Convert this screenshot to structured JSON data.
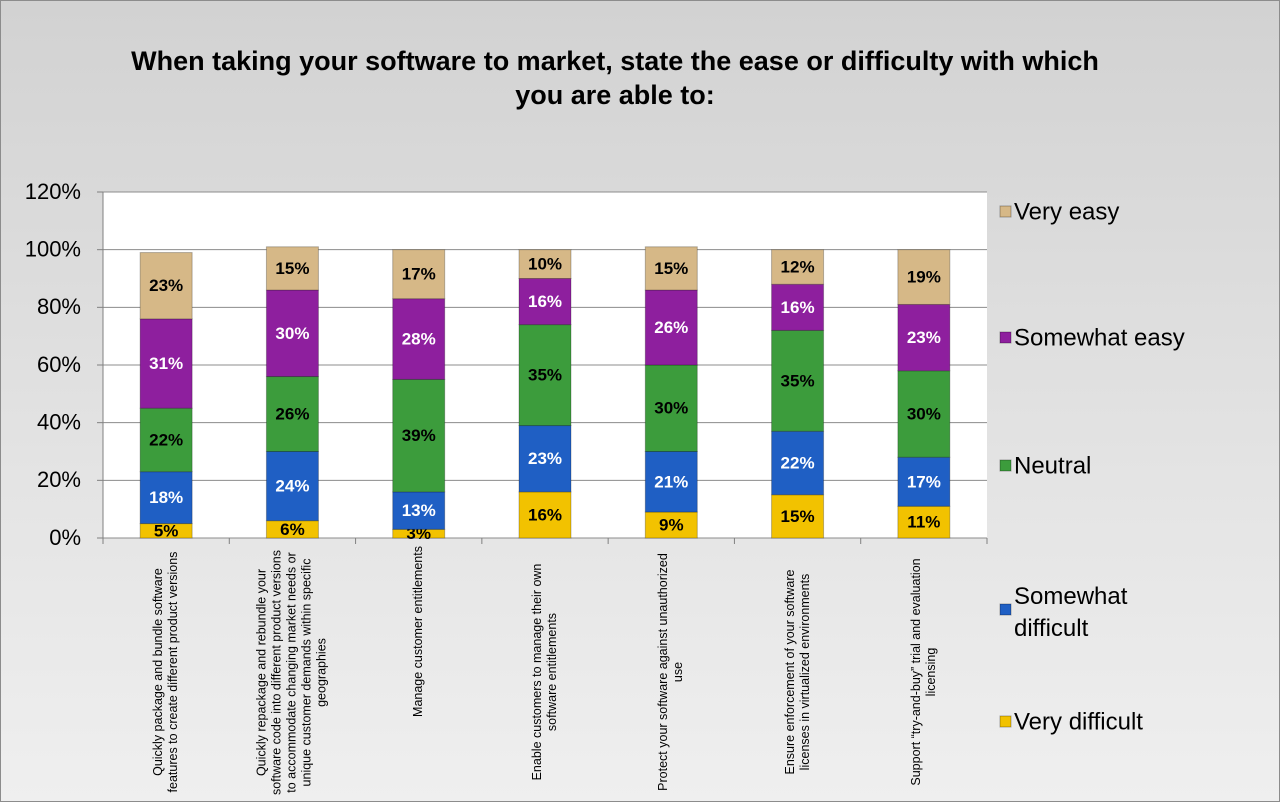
{
  "chart_data": {
    "type": "stacked_bar",
    "title": "When taking your software to market, state the ease or difficulty with which you are able to:",
    "categories": [
      "Quickly package and bundle software features to create different product versions",
      "Quickly repackage and rebundle your software code into different product versions to accommodate changing market needs or unique customer demands within specific geographies",
      "Manage customer entitlements",
      "Enable customers to manage their own software entitlements",
      "Protect your software against unauthorized use",
      "Ensure enforcement of your software licenses in virtualized environments",
      "Support “try-and-buy” trial and evaluation licensing"
    ],
    "series": [
      {
        "name": "Very difficult",
        "color": "#f2c200",
        "label_color": "#000000",
        "values": [
          5,
          6,
          3,
          16,
          9,
          15,
          11
        ],
        "value_labels": [
          "5%",
          "6%",
          "3%",
          "16%",
          "9%",
          "15%",
          "11%"
        ]
      },
      {
        "name": "Somewhat difficult",
        "color": "#1f5fc4",
        "label_color": "#ffffff",
        "values": [
          18,
          24,
          13,
          23,
          21,
          22,
          17
        ],
        "value_labels": [
          "18%",
          "24%",
          "13%",
          "23%",
          "21%",
          "22%",
          "17%"
        ]
      },
      {
        "name": "Neutral",
        "color": "#3c9c3c",
        "label_color": "#000000",
        "values": [
          22,
          26,
          39,
          35,
          30,
          35,
          30
        ],
        "value_labels": [
          "22%",
          "26%",
          "39%",
          "35%",
          "30%",
          "35%",
          "30%"
        ]
      },
      {
        "name": "Somewhat easy",
        "color": "#8e1f9e",
        "label_color": "#ffffff",
        "values": [
          31,
          30,
          28,
          16,
          26,
          16,
          23
        ],
        "value_labels": [
          "31%",
          "30%",
          "28%",
          "16%",
          "26%",
          "16%",
          "23%"
        ]
      },
      {
        "name": "Very easy",
        "color": "#d6b887",
        "label_color": "#000000",
        "values": [
          23,
          15,
          17,
          10,
          15,
          12,
          19
        ],
        "value_labels": [
          "23%",
          "15%",
          "17%",
          "10%",
          "15%",
          "12%",
          "19%"
        ]
      }
    ],
    "ylim": [
      0,
      120
    ],
    "yticks": [
      {
        "value": 0,
        "label": "0%"
      },
      {
        "value": 20,
        "label": "20%"
      },
      {
        "value": 40,
        "label": "40%"
      },
      {
        "value": 60,
        "label": "60%"
      },
      {
        "value": 80,
        "label": "80%"
      },
      {
        "value": 100,
        "label": "100%"
      },
      {
        "value": 120,
        "label": "120%"
      }
    ],
    "grid": true,
    "legend": "right"
  }
}
